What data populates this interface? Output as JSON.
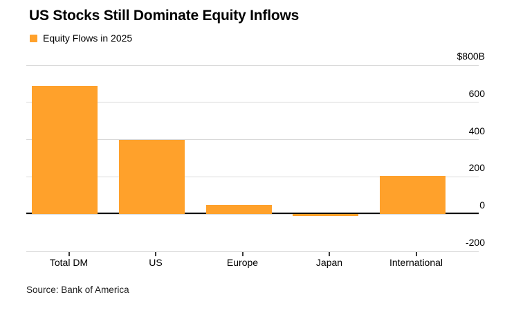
{
  "header": {
    "title": "US Stocks Still Dominate Equity Inflows",
    "legend_label": "Equity Flows in 2025"
  },
  "chart_data": {
    "type": "bar",
    "title": "US Stocks Still Dominate Equity Inflows",
    "legend": [
      "Equity Flows in 2025"
    ],
    "categories": [
      "Total DM",
      "US",
      "Europe",
      "Japan",
      "International"
    ],
    "values": [
      690,
      400,
      50,
      -10,
      205
    ],
    "unit": "USD billions",
    "ylim": [
      -200,
      800
    ],
    "yticks": [
      800,
      600,
      400,
      200,
      0,
      -200
    ],
    "ytick_labels": [
      "$800B",
      "600",
      "400",
      "200",
      "0",
      "-200"
    ],
    "grid": "horizontal-only",
    "legend_position": "top-left",
    "ytick_label_position": "right"
  },
  "footer": {
    "source": "Source: Bank of America"
  },
  "colors": {
    "bar": "#FFA12B",
    "grid": "#d9d9d9",
    "zero_line": "#000000",
    "text": "#000000",
    "background": "#ffffff"
  }
}
